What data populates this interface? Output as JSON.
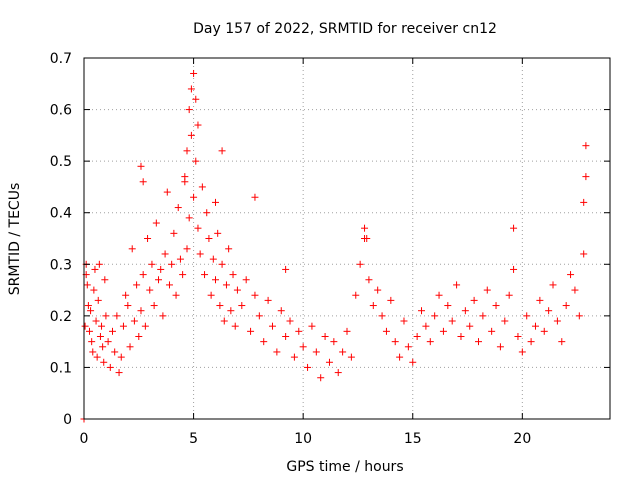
{
  "chart_data": {
    "type": "scatter",
    "title": "Day 157 of 2022, SRMTID for receiver cn12",
    "xlabel": "GPS time / hours",
    "ylabel": "SRMTID / TECUs",
    "xlim": [
      0,
      24.0
    ],
    "ylim": [
      0,
      0.7
    ],
    "xticks": [
      0,
      5,
      10,
      15,
      20
    ],
    "yticks": [
      0,
      0.1,
      0.2,
      0.3,
      0.4,
      0.5,
      0.6,
      0.7
    ],
    "xtick_labels": [
      "0",
      "5",
      "10",
      "15",
      "20"
    ],
    "ytick_labels": [
      "0",
      "0.1",
      "0.2",
      "0.3",
      "0.4",
      "0.5",
      "0.6",
      "0.7"
    ],
    "grid": true,
    "marker": "+",
    "color": "#ff0000",
    "series": [
      {
        "name": "SRMTID",
        "x": [
          0.0,
          0.05,
          0.1,
          0.15,
          0.2,
          0.25,
          0.3,
          0.35,
          0.4,
          0.45,
          0.5,
          0.55,
          0.6,
          0.65,
          0.7,
          0.75,
          0.8,
          0.85,
          0.9,
          0.95,
          1.0,
          1.1,
          1.2,
          1.3,
          1.4,
          1.5,
          1.6,
          1.7,
          1.8,
          1.9,
          2.0,
          2.1,
          2.2,
          2.3,
          2.4,
          2.5,
          2.6,
          2.7,
          2.8,
          2.9,
          3.0,
          3.1,
          3.2,
          3.3,
          3.4,
          3.5,
          3.6,
          3.7,
          3.8,
          3.9,
          4.0,
          4.1,
          4.2,
          4.3,
          4.4,
          4.5,
          4.6,
          4.7,
          4.8,
          4.9,
          5.0,
          5.1,
          5.2,
          5.3,
          5.4,
          5.5,
          5.6,
          5.7,
          5.8,
          5.9,
          6.0,
          6.1,
          6.2,
          6.3,
          6.4,
          6.5,
          6.6,
          6.7,
          6.8,
          6.9,
          7.0,
          7.2,
          7.4,
          7.6,
          7.8,
          8.0,
          8.2,
          8.4,
          8.6,
          8.8,
          9.0,
          9.2,
          9.4,
          9.6,
          9.8,
          10.0,
          10.2,
          10.4,
          10.6,
          10.8,
          11.0,
          11.2,
          11.4,
          11.6,
          11.8,
          12.0,
          12.2,
          12.4,
          12.6,
          12.8,
          13.0,
          13.2,
          13.4,
          13.6,
          13.8,
          14.0,
          14.2,
          14.4,
          14.6,
          14.8,
          15.0,
          15.2,
          15.4,
          15.6,
          15.8,
          16.0,
          16.2,
          16.4,
          16.6,
          16.8,
          17.0,
          17.2,
          17.4,
          17.6,
          17.8,
          18.0,
          18.2,
          18.4,
          18.6,
          18.8,
          19.0,
          19.2,
          19.4,
          19.6,
          19.8,
          20.0,
          20.2,
          20.4,
          20.6,
          20.8,
          21.0,
          21.2,
          21.4,
          21.6,
          21.8,
          22.0,
          22.2,
          22.4,
          22.6,
          22.8,
          4.8,
          4.9,
          5.0,
          5.1,
          5.2,
          4.7,
          4.6,
          6.3,
          6.0,
          2.6,
          2.7,
          12.8,
          12.9,
          19.6,
          22.9,
          22.9,
          22.8,
          7.8,
          0.1,
          9.2
        ],
        "y": [
          0.0,
          0.18,
          0.28,
          0.26,
          0.22,
          0.17,
          0.21,
          0.15,
          0.13,
          0.25,
          0.29,
          0.19,
          0.12,
          0.23,
          0.3,
          0.16,
          0.18,
          0.14,
          0.11,
          0.27,
          0.2,
          0.15,
          0.1,
          0.17,
          0.13,
          0.2,
          0.09,
          0.12,
          0.18,
          0.24,
          0.22,
          0.14,
          0.33,
          0.19,
          0.26,
          0.16,
          0.21,
          0.28,
          0.18,
          0.35,
          0.25,
          0.3,
          0.22,
          0.38,
          0.27,
          0.29,
          0.2,
          0.32,
          0.44,
          0.26,
          0.3,
          0.36,
          0.24,
          0.41,
          0.31,
          0.28,
          0.47,
          0.33,
          0.39,
          0.55,
          0.43,
          0.5,
          0.37,
          0.32,
          0.45,
          0.28,
          0.4,
          0.35,
          0.24,
          0.31,
          0.27,
          0.36,
          0.22,
          0.3,
          0.19,
          0.26,
          0.33,
          0.21,
          0.28,
          0.18,
          0.25,
          0.22,
          0.27,
          0.17,
          0.24,
          0.2,
          0.15,
          0.23,
          0.18,
          0.13,
          0.21,
          0.16,
          0.19,
          0.12,
          0.17,
          0.14,
          0.1,
          0.18,
          0.13,
          0.08,
          0.16,
          0.11,
          0.15,
          0.09,
          0.13,
          0.17,
          0.12,
          0.24,
          0.3,
          0.35,
          0.27,
          0.22,
          0.25,
          0.2,
          0.17,
          0.23,
          0.15,
          0.12,
          0.19,
          0.14,
          0.11,
          0.16,
          0.21,
          0.18,
          0.15,
          0.2,
          0.24,
          0.17,
          0.22,
          0.19,
          0.26,
          0.16,
          0.21,
          0.18,
          0.23,
          0.15,
          0.2,
          0.25,
          0.17,
          0.22,
          0.14,
          0.19,
          0.24,
          0.29,
          0.16,
          0.13,
          0.2,
          0.15,
          0.18,
          0.23,
          0.17,
          0.21,
          0.26,
          0.19,
          0.15,
          0.22,
          0.28,
          0.25,
          0.2,
          0.32,
          0.6,
          0.64,
          0.67,
          0.62,
          0.57,
          0.52,
          0.46,
          0.52,
          0.42,
          0.49,
          0.46,
          0.37,
          0.35,
          0.37,
          0.53,
          0.47,
          0.42,
          0.43,
          0.3,
          0.29
        ]
      }
    ]
  }
}
